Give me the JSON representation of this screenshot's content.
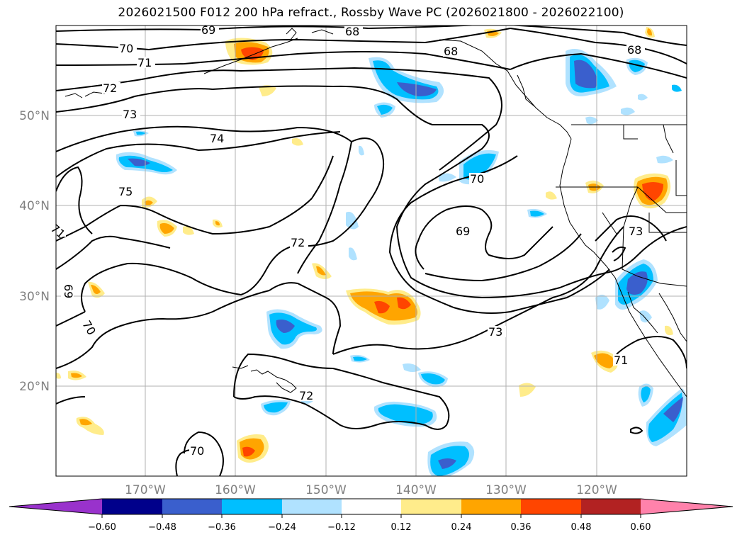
{
  "title": "2026021500 F012 200 hPa refract., Rossby Wave PC (2026021800 - 2026022100)",
  "map": {
    "lat_labels": [
      "50°N",
      "40°N",
      "30°N",
      "20°N"
    ],
    "lon_labels": [
      "170°W",
      "160°W",
      "150°W",
      "140°W",
      "130°W",
      "120°W"
    ],
    "gridlines": true,
    "contour_levels": [
      68,
      69,
      70,
      71,
      72,
      73,
      74,
      75
    ],
    "contour_labels": [
      "69",
      "68",
      "70",
      "71",
      "68",
      "68",
      "72",
      "73",
      "74",
      "75",
      "70",
      "69",
      "72",
      "73",
      "73",
      "71",
      "72",
      "70",
      "69",
      "70",
      "71"
    ]
  },
  "colorbar": {
    "ticks": [
      "−0.60",
      "−0.48",
      "−0.36",
      "−0.24",
      "−0.12",
      "0.12",
      "0.24",
      "0.36",
      "0.48",
      "0.60"
    ],
    "colors": [
      "#9932cc",
      "#00008b",
      "#3a5fcd",
      "#00bfff",
      "#b0e2ff",
      "#ffffff",
      "#ffec8b",
      "#ffa500",
      "#ff4500",
      "#b22222",
      "#ff82ab"
    ],
    "extend": "both"
  }
}
